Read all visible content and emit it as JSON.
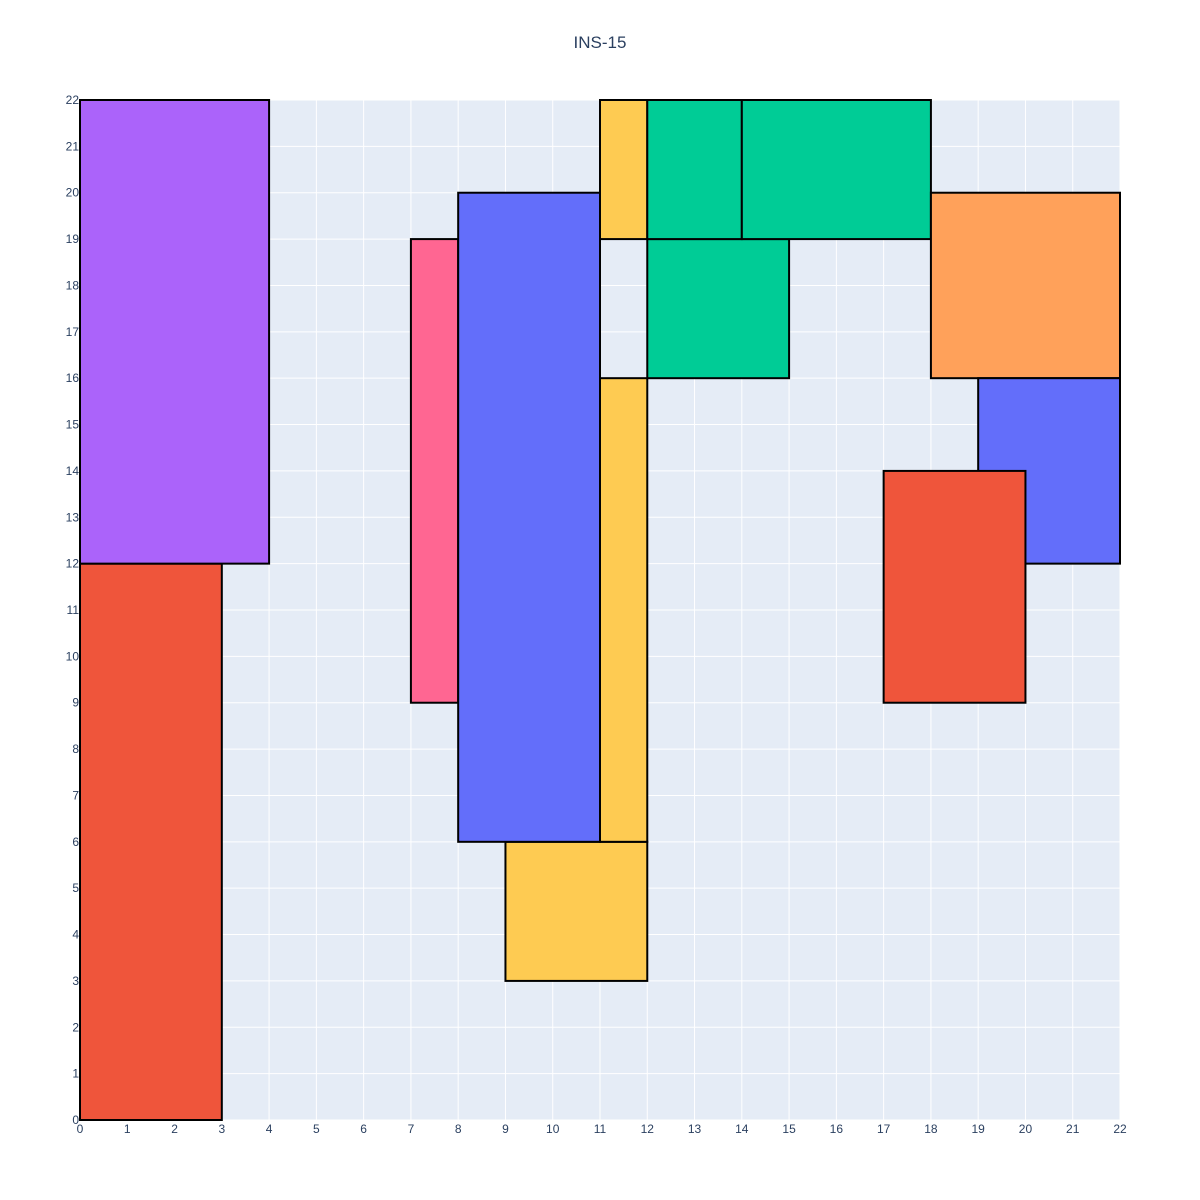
{
  "chart_data": {
    "type": "rectangles",
    "title": "INS-15",
    "xlabel": "",
    "ylabel": "",
    "xlim": [
      0,
      22
    ],
    "ylim": [
      0,
      22
    ],
    "grid": true,
    "background_color": "#e5ecf6",
    "x_ticks": [
      0,
      1,
      2,
      3,
      4,
      5,
      6,
      7,
      8,
      9,
      10,
      11,
      12,
      13,
      14,
      15,
      16,
      17,
      18,
      19,
      20,
      21,
      22
    ],
    "y_ticks": [
      0,
      1,
      2,
      3,
      4,
      5,
      6,
      7,
      8,
      9,
      10,
      11,
      12,
      13,
      14,
      15,
      16,
      17,
      18,
      19,
      20,
      21,
      22
    ],
    "rects": [
      {
        "x0": 0,
        "x1": 3,
        "y0": 0,
        "y1": 12,
        "color": "#ef553b"
      },
      {
        "x0": 0,
        "x1": 4,
        "y0": 12,
        "y1": 22,
        "color": "#ab63fa"
      },
      {
        "x0": 7,
        "x1": 8,
        "y0": 9,
        "y1": 19,
        "color": "#ff6692"
      },
      {
        "x0": 9,
        "x1": 12,
        "y0": 3,
        "y1": 6,
        "color": "#fecb52"
      },
      {
        "x0": 11,
        "x1": 12,
        "y0": 6,
        "y1": 16,
        "color": "#fecb52"
      },
      {
        "x0": 8,
        "x1": 11,
        "y0": 6,
        "y1": 20,
        "color": "#636efa"
      },
      {
        "x0": 11,
        "x1": 12,
        "y0": 19,
        "y1": 22,
        "color": "#fecb52"
      },
      {
        "x0": 12,
        "x1": 15,
        "y0": 16,
        "y1": 19,
        "color": "#00cc96"
      },
      {
        "x0": 12,
        "x1": 14,
        "y0": 19,
        "y1": 22,
        "color": "#00cc96"
      },
      {
        "x0": 14,
        "x1": 18,
        "y0": 19,
        "y1": 22,
        "color": "#00cc96"
      },
      {
        "x0": 18,
        "x1": 22,
        "y0": 16,
        "y1": 20,
        "color": "#ffa15a"
      },
      {
        "x0": 19,
        "x1": 22,
        "y0": 12,
        "y1": 16,
        "color": "#636efa"
      },
      {
        "x0": 17,
        "x1": 20,
        "y0": 9,
        "y1": 14,
        "color": "#ef553b"
      }
    ]
  }
}
